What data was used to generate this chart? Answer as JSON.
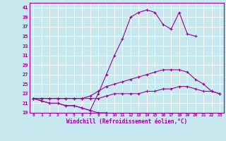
{
  "x": [
    0,
    1,
    2,
    3,
    4,
    5,
    6,
    7,
    8,
    9,
    10,
    11,
    12,
    13,
    14,
    15,
    16,
    17,
    18,
    19,
    20,
    21,
    22,
    23
  ],
  "line1": [
    22,
    21.5,
    21,
    21,
    20.5,
    20.5,
    20,
    19.5,
    19,
    19,
    null,
    null,
    null,
    null,
    null,
    null,
    null,
    null,
    null,
    null,
    null,
    null,
    null,
    null
  ],
  "line2": [
    22,
    21.5,
    21,
    21,
    20.5,
    20.5,
    20,
    19.5,
    23,
    27,
    31,
    34.5,
    39,
    40,
    40.5,
    40,
    37.5,
    36.5,
    40,
    35.5,
    35,
    null,
    null,
    null
  ],
  "line3": [
    22,
    22,
    22,
    22,
    22,
    22,
    22,
    22.5,
    23.5,
    24.5,
    25,
    25.5,
    26,
    26.5,
    27,
    27.5,
    28,
    28,
    28,
    27.5,
    26,
    25,
    23.5,
    23
  ],
  "line4": [
    22,
    22,
    22,
    22,
    22,
    22,
    22,
    22,
    22,
    22.5,
    23,
    23,
    23,
    23,
    23.5,
    23.5,
    24,
    24,
    24.5,
    24.5,
    24,
    23.5,
    23.5,
    23
  ],
  "color": "#990099",
  "bg_color": "#c8e8f0",
  "grid_color": "#b0d8e8",
  "xlabel": "Windchill (Refroidissement éolien,°C)",
  "ylim": [
    19,
    42
  ],
  "xlim": [
    -0.5,
    23.5
  ],
  "yticks": [
    19,
    21,
    23,
    25,
    27,
    29,
    31,
    33,
    35,
    37,
    39,
    41
  ],
  "xticks": [
    0,
    1,
    2,
    3,
    4,
    5,
    6,
    7,
    8,
    9,
    10,
    11,
    12,
    13,
    14,
    15,
    16,
    17,
    18,
    19,
    20,
    21,
    22,
    23
  ]
}
